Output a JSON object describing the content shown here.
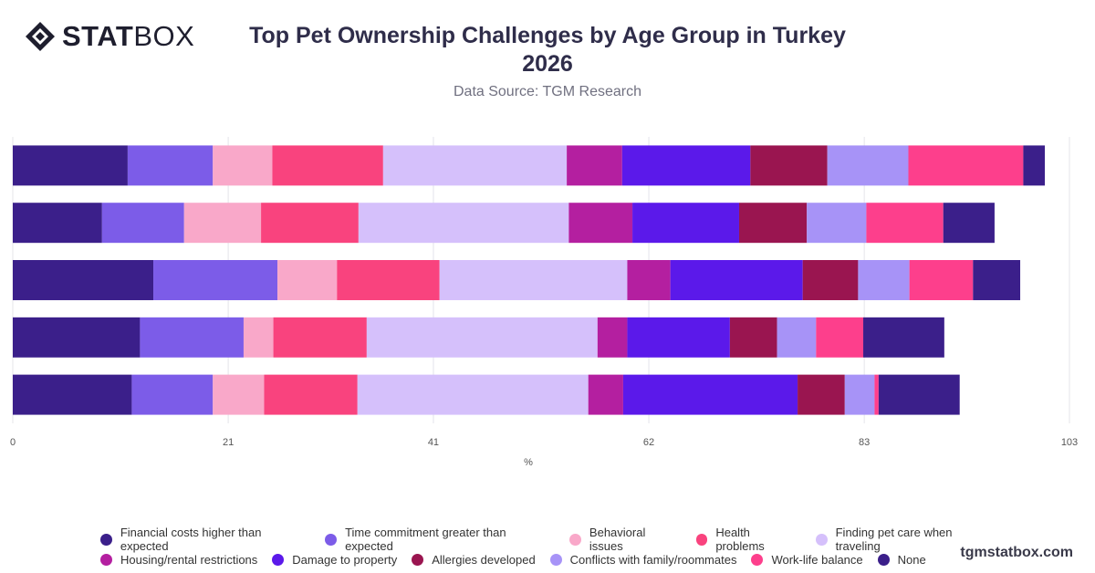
{
  "brand": {
    "logo_bold": "STAT",
    "logo_light": "BOX",
    "website": "tgmstatbox.com"
  },
  "header": {
    "title_line1": "Top Pet Ownership Challenges by Age Group in Turkey",
    "title_line2": "2026",
    "subtitle": "Data Source: TGM Research"
  },
  "chart_data": {
    "type": "bar",
    "orientation": "horizontal",
    "stacked": true,
    "xlabel": "%",
    "xlim": [
      0,
      103
    ],
    "xticks": [
      0,
      21,
      41,
      62,
      83,
      103
    ],
    "grid": true,
    "legend_position": "bottom",
    "categories": [
      "",
      "",
      "",
      "",
      ""
    ],
    "series": [
      {
        "name": "Financial costs higher than expected",
        "color": "#3b1f8a",
        "values": [
          11.2,
          8.7,
          13.7,
          12.4,
          11.6
        ]
      },
      {
        "name": "Time commitment greater than expected",
        "color": "#7c5ce8",
        "values": [
          8.3,
          8.0,
          12.1,
          10.1,
          7.9
        ]
      },
      {
        "name": "Behavioral issues",
        "color": "#f9a8c9",
        "values": [
          5.8,
          7.5,
          5.8,
          2.9,
          5.0
        ]
      },
      {
        "name": "Health problems",
        "color": "#f9437e",
        "values": [
          10.8,
          9.5,
          10.0,
          9.1,
          9.1
        ]
      },
      {
        "name": "Finding pet care when traveling",
        "color": "#d5c0fb",
        "values": [
          17.9,
          20.5,
          18.3,
          22.5,
          22.5
        ]
      },
      {
        "name": "Housing/rental restrictions",
        "color": "#b41fa0",
        "values": [
          5.4,
          6.2,
          4.2,
          2.9,
          3.4
        ]
      },
      {
        "name": "Damage to property",
        "color": "#5b19ea",
        "values": [
          12.5,
          10.4,
          12.9,
          10.0,
          17.0
        ]
      },
      {
        "name": "Allergies developed",
        "color": "#9a1550",
        "values": [
          7.5,
          6.6,
          5.4,
          4.6,
          4.6
        ]
      },
      {
        "name": "Conflicts with family/roommates",
        "color": "#a793f7",
        "values": [
          7.9,
          5.8,
          5.0,
          3.8,
          2.9
        ]
      },
      {
        "name": "Work-life balance",
        "color": "#fd3f8c",
        "values": [
          11.2,
          7.5,
          6.2,
          4.6,
          0.4
        ]
      },
      {
        "name": "None",
        "color": "#3b1f8a",
        "values": [
          2.1,
          5.0,
          4.6,
          7.9,
          7.9
        ]
      }
    ]
  }
}
